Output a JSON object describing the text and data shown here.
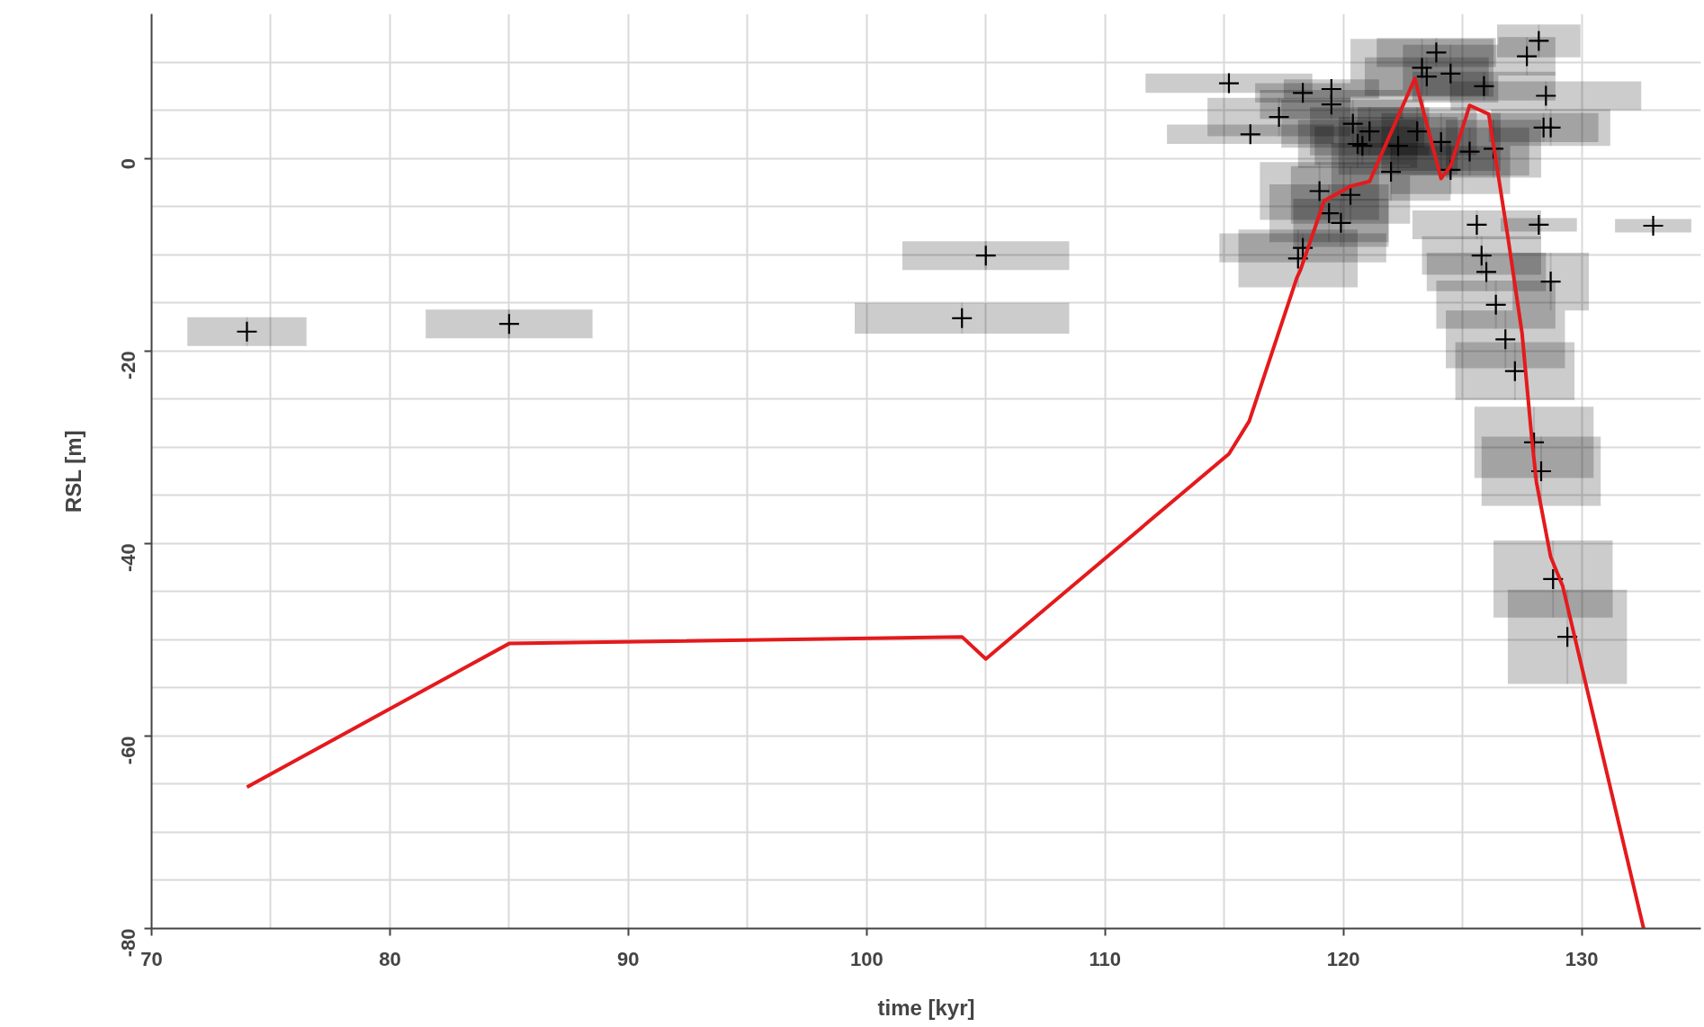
{
  "chart_data": {
    "type": "scatter",
    "xlabel": "time [kyr]",
    "ylabel": "RSL [m]",
    "xlim": [
      70,
      135
    ],
    "ylim": [
      -80,
      15
    ],
    "xticks": [
      70,
      {
        "value": 75,
        "label": null
      },
      80,
      {
        "value": 85,
        "label": null
      },
      90,
      {
        "value": 95,
        "label": null
      },
      100,
      {
        "value": 105,
        "label": null
      },
      110,
      {
        "value": 115,
        "label": null
      },
      120,
      {
        "value": 125,
        "label": null
      },
      130
    ],
    "yticks": [
      -80,
      {
        "value": -75,
        "label": null
      },
      {
        "value": -70,
        "label": null
      },
      {
        "value": -65,
        "label": null
      },
      -60,
      {
        "value": -55,
        "label": null
      },
      {
        "value": -50,
        "label": null
      },
      {
        "value": -45,
        "label": null
      },
      -40,
      {
        "value": -35,
        "label": null
      },
      {
        "value": -30,
        "label": null
      },
      {
        "value": -25,
        "label": null
      },
      -20,
      {
        "value": -15,
        "label": null
      },
      {
        "value": -10,
        "label": null
      },
      {
        "value": -5,
        "label": null
      },
      0,
      {
        "value": 5,
        "label": null
      },
      {
        "value": 10,
        "label": null
      }
    ],
    "grid": true,
    "series": [
      {
        "color": "#000000",
        "marker": "cross",
        "x": [
          74.0,
          85.0,
          105.0,
          104.0,
          133.0,
          115.2,
          128.2,
          127.7,
          128.5,
          128.4,
          128.7,
          128.2,
          128.7,
          125.6,
          125.8,
          126.0,
          126.4,
          126.8,
          127.2,
          128.0,
          128.3,
          128.8,
          129.4,
          118.3,
          119.5,
          119.5,
          117.3,
          116.1,
          123.9,
          123.3,
          123.5,
          124.5,
          125.9,
          120.4,
          121.1,
          120.6,
          120.8,
          123.1,
          122.3,
          124.1,
          125.3,
          126.3,
          122.0,
          124.5,
          119.0,
          120.3,
          119.4,
          119.9,
          118.3,
          118.1
        ],
        "values": [
          -18.0,
          -17.2,
          -10.1,
          -16.6,
          -7.0,
          7.8,
          12.2,
          10.6,
          6.5,
          3.2,
          3.2,
          -6.9,
          -12.8,
          -6.9,
          -10.1,
          -11.8,
          -15.2,
          -18.8,
          -22.1,
          -29.5,
          -32.5,
          -43.7,
          -49.7,
          6.8,
          7.2,
          5.6,
          4.3,
          2.5,
          11.0,
          9.4,
          8.5,
          8.8,
          7.5,
          3.6,
          2.8,
          1.5,
          1.3,
          2.8,
          1.3,
          1.7,
          0.7,
          1.0,
          -1.4,
          -1.2,
          -3.4,
          -3.8,
          -5.7,
          -6.7,
          -9.3,
          -10.4
        ],
        "xerrors": [
          2.5,
          3.5,
          3.5,
          4.5,
          1.6,
          3.5,
          1.75,
          1.2,
          4,
          2.3,
          2.5,
          1.6,
          1.6,
          2.7,
          2.5,
          2.5,
          2.5,
          2.5,
          2.5,
          2.5,
          2.5,
          2.5,
          2.5,
          2,
          2,
          3,
          3,
          3.5,
          2.5,
          3,
          2.6,
          2,
          3,
          3,
          2.5,
          2.5,
          2,
          2.5,
          2.5,
          2.5,
          2.5,
          2,
          2.5,
          2.5,
          2.5,
          2.5,
          2.5,
          2,
          3.5,
          2.5
        ],
        "errors": [
          1.5,
          1.5,
          1.5,
          1.6,
          0.7,
          1.0,
          1.7,
          2,
          1.5,
          1.5,
          1.9,
          0.7,
          3,
          1.5,
          2,
          2,
          2.5,
          3,
          3,
          3.7,
          3.6,
          4,
          4.9,
          1,
          1,
          1.5,
          2,
          1,
          1.5,
          3,
          2,
          3,
          1.5,
          2.5,
          2.5,
          2.5,
          2,
          2.5,
          3,
          3,
          2.5,
          3,
          3,
          2.5,
          3,
          3,
          3,
          2.5,
          1.5,
          3
        ]
      },
      {
        "type": "line",
        "color": "#e41a1c",
        "line_style": "solid",
        "x": [
          74.0,
          85.0,
          104.0,
          105.0,
          115.2,
          116.05,
          118.05,
          118.2,
          119.2,
          120.3,
          121.1,
          123.0,
          124.1,
          124.5,
          125.3,
          126.1,
          126.9,
          127.5,
          127.9,
          128.1,
          128.7,
          129.2,
          132.6
        ],
        "values": [
          -65.3,
          -50.4,
          -49.7,
          -52.0,
          -30.7,
          -27.3,
          -12.4,
          -11.6,
          -4.4,
          -2.9,
          -2.4,
          8.3,
          -2.1,
          -0.8,
          5.5,
          4.6,
          -8.1,
          -18.2,
          -28.9,
          -33.6,
          -41.4,
          -44.4,
          -80.0
        ]
      }
    ]
  }
}
